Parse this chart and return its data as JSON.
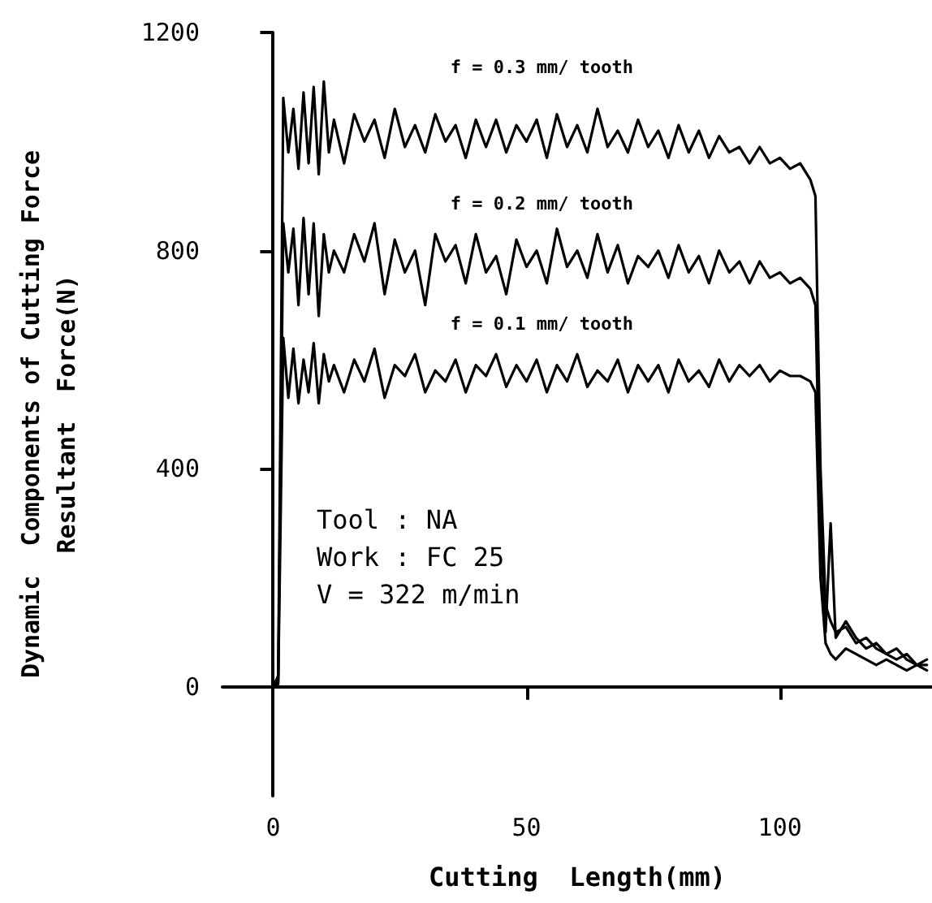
{
  "chart_data": {
    "type": "line",
    "xlabel": "Cutting  Length(mm)",
    "ylabel": "Dynamic  Components of Cutting Force\nResultant  Force(N)",
    "xlim": [
      -10,
      130
    ],
    "xticks": [
      0,
      50,
      100
    ],
    "ylim": [
      -200,
      1200
    ],
    "yticks": [
      0,
      400,
      800,
      1200
    ],
    "marker": "none",
    "line_style": "solid",
    "series": [
      {
        "name": "f = 0.3 mm/ tooth",
        "color": "#000000",
        "x": [
          -8,
          0,
          1,
          2,
          3,
          4,
          5,
          6,
          7,
          8,
          9,
          10,
          11,
          12,
          14,
          16,
          18,
          20,
          22,
          24,
          26,
          28,
          30,
          32,
          34,
          36,
          38,
          40,
          42,
          44,
          46,
          48,
          50,
          52,
          54,
          56,
          58,
          60,
          62,
          64,
          66,
          68,
          70,
          72,
          74,
          76,
          78,
          80,
          82,
          84,
          86,
          88,
          90,
          92,
          94,
          96,
          98,
          100,
          102,
          104,
          106,
          107,
          108,
          109,
          110,
          111,
          113,
          115,
          117,
          119,
          121,
          123,
          125,
          127,
          129
        ],
        "values": [
          0,
          0,
          20,
          1080,
          980,
          1060,
          950,
          1090,
          960,
          1100,
          940,
          1110,
          980,
          1040,
          960,
          1050,
          1000,
          1040,
          970,
          1060,
          990,
          1030,
          980,
          1050,
          1000,
          1030,
          970,
          1040,
          990,
          1040,
          980,
          1030,
          1000,
          1040,
          970,
          1050,
          990,
          1030,
          980,
          1060,
          990,
          1020,
          980,
          1040,
          990,
          1020,
          970,
          1030,
          980,
          1020,
          970,
          1010,
          980,
          990,
          960,
          990,
          960,
          970,
          950,
          960,
          930,
          900,
          400,
          150,
          120,
          100,
          110,
          80,
          90,
          70,
          60,
          70,
          50,
          40,
          50
        ]
      },
      {
        "name": "f = 0.2 mm/ tooth",
        "color": "#000000",
        "x": [
          -8,
          0,
          1,
          2,
          3,
          4,
          5,
          6,
          7,
          8,
          9,
          10,
          11,
          12,
          14,
          16,
          18,
          20,
          22,
          24,
          26,
          28,
          30,
          32,
          34,
          36,
          38,
          40,
          42,
          44,
          46,
          48,
          50,
          52,
          54,
          56,
          58,
          60,
          62,
          64,
          66,
          68,
          70,
          72,
          74,
          76,
          78,
          80,
          82,
          84,
          86,
          88,
          90,
          92,
          94,
          96,
          98,
          100,
          102,
          104,
          106,
          107,
          108,
          109,
          110,
          111,
          113,
          115,
          117,
          119,
          121,
          123,
          125,
          127,
          129
        ],
        "values": [
          0,
          0,
          10,
          850,
          760,
          840,
          700,
          860,
          720,
          850,
          680,
          830,
          760,
          800,
          760,
          830,
          780,
          850,
          720,
          820,
          760,
          800,
          700,
          830,
          780,
          810,
          740,
          830,
          760,
          790,
          720,
          820,
          770,
          800,
          740,
          840,
          770,
          800,
          750,
          830,
          760,
          810,
          740,
          790,
          770,
          800,
          750,
          810,
          760,
          790,
          740,
          800,
          760,
          780,
          740,
          780,
          750,
          760,
          740,
          750,
          730,
          700,
          300,
          100,
          300,
          90,
          120,
          90,
          70,
          80,
          60,
          50,
          60,
          40,
          40
        ]
      },
      {
        "name": "f = 0.1 mm/ tooth",
        "color": "#000000",
        "x": [
          -8,
          0,
          1,
          2,
          3,
          4,
          5,
          6,
          7,
          8,
          9,
          10,
          11,
          12,
          14,
          16,
          18,
          20,
          22,
          24,
          26,
          28,
          30,
          32,
          34,
          36,
          38,
          40,
          42,
          44,
          46,
          48,
          50,
          52,
          54,
          56,
          58,
          60,
          62,
          64,
          66,
          68,
          70,
          72,
          74,
          76,
          78,
          80,
          82,
          84,
          86,
          88,
          90,
          92,
          94,
          96,
          98,
          100,
          102,
          104,
          106,
          107,
          108,
          109,
          110,
          111,
          113,
          115,
          117,
          119,
          121,
          123,
          125,
          127,
          129
        ],
        "values": [
          0,
          0,
          5,
          640,
          530,
          620,
          520,
          600,
          540,
          630,
          520,
          610,
          560,
          590,
          540,
          600,
          560,
          620,
          530,
          590,
          570,
          610,
          540,
          580,
          560,
          600,
          540,
          590,
          570,
          610,
          550,
          590,
          560,
          600,
          540,
          590,
          560,
          610,
          550,
          580,
          560,
          600,
          540,
          590,
          560,
          590,
          540,
          600,
          560,
          580,
          550,
          600,
          560,
          590,
          570,
          590,
          560,
          580,
          570,
          570,
          560,
          540,
          200,
          80,
          60,
          50,
          70,
          60,
          50,
          40,
          50,
          40,
          30,
          40,
          30
        ]
      }
    ],
    "annotations": [
      "Tool : NA",
      "Work : FC 25",
      "V = 322 m/min"
    ]
  }
}
